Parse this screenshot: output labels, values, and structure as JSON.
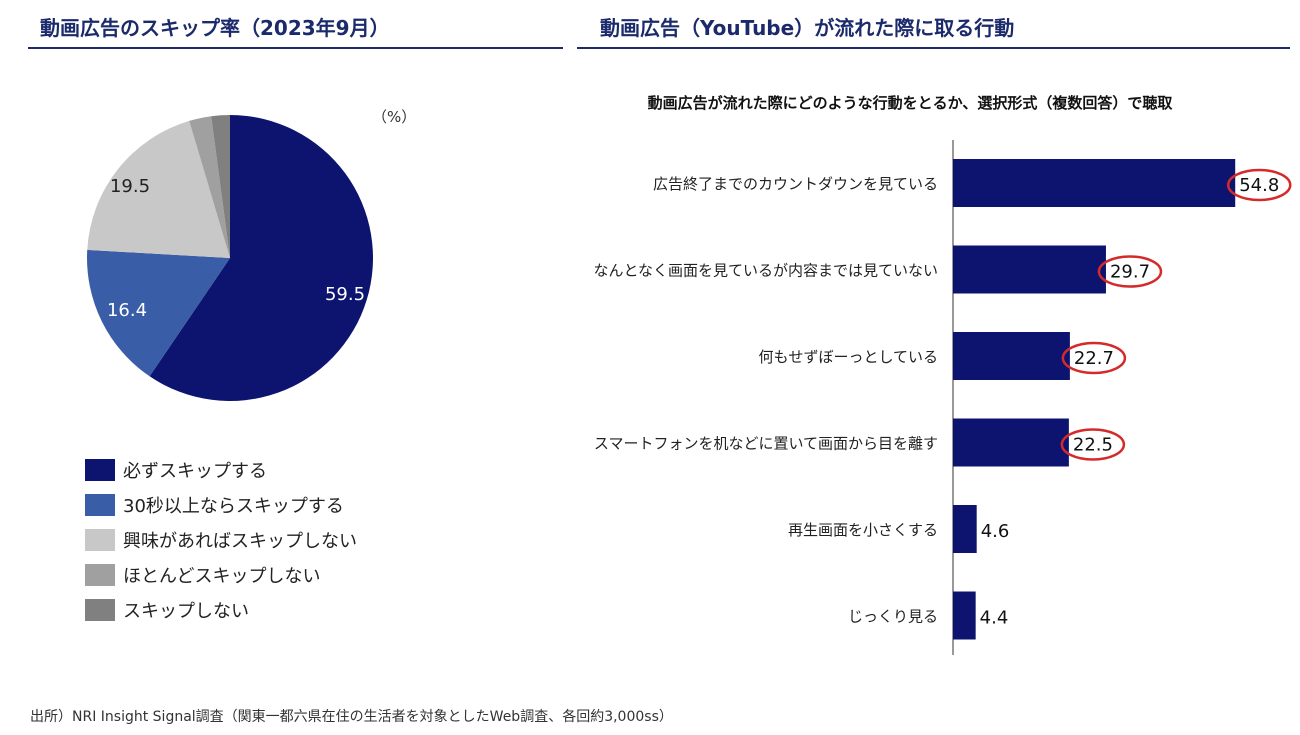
{
  "source": "出所）NRI Insight Signal調査（関東一都六県在住の生活者を対象としたWeb調査、各回約3,000ss）",
  "chart_data": [
    {
      "type": "pie",
      "title": "動画広告のスキップ率（2023年9月）",
      "unit": "（%）",
      "slices": [
        {
          "label": "必ずスキップする",
          "value": 59.5,
          "color": "#0d1470",
          "shown": "59.5"
        },
        {
          "label": "30秒以上ならスキップする",
          "value": 16.4,
          "color": "#3a5da8",
          "shown": "16.4"
        },
        {
          "label": "興味があればスキップしない",
          "value": 19.5,
          "color": "#c8c8c8",
          "shown": "19.5"
        },
        {
          "label": "ほとんどスキップしない",
          "value": 2.5,
          "color": "#a0a0a0",
          "shown": ""
        },
        {
          "label": "スキップしない",
          "value": 2.1,
          "color": "#808080",
          "shown": ""
        }
      ],
      "legend": "bottom"
    },
    {
      "type": "bar",
      "title": "動画広告（YouTube）が流れた際に取る行動",
      "subtitle": "動画広告が流れた際にどのような行動をとるか、選択形式（複数回答）で聴取",
      "categories": [
        "広告終了までのカウントダウンを見ている",
        "なんとなく画面を見ているが内容までは見ていない",
        "何もせずぼーっとしている",
        "スマートフォンを机などに置いて画面から目を離す",
        "再生画面を小さくする",
        "じっくり見る"
      ],
      "values": [
        54.8,
        29.7,
        22.7,
        22.5,
        4.6,
        4.4
      ],
      "labels": [
        "54.8",
        "29.7",
        "22.7",
        "22.5",
        "4.6",
        "4.4"
      ],
      "highlighted": [
        true,
        true,
        true,
        true,
        false,
        false
      ],
      "color": "#0d1470",
      "highlight_color": "#d42a2a"
    }
  ]
}
